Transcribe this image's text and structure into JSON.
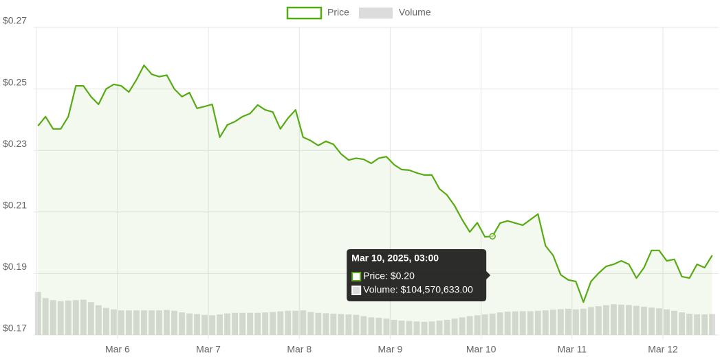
{
  "chart_data": {
    "type": "line",
    "x": [
      3,
      5,
      7,
      9,
      11,
      13,
      15,
      17,
      19,
      21,
      23,
      25,
      27,
      29,
      31,
      33,
      35,
      37,
      39,
      41,
      43,
      45,
      47,
      49,
      51,
      53,
      55,
      57,
      59,
      61,
      63,
      65,
      67,
      69,
      71,
      73,
      75,
      77,
      79,
      81,
      83,
      85,
      87,
      89,
      91,
      93,
      95,
      97,
      99,
      101,
      103,
      105,
      107,
      109,
      111,
      113,
      115,
      117,
      119,
      121,
      123,
      125,
      127,
      129,
      131,
      133,
      135,
      137,
      139,
      141,
      143,
      145,
      147,
      149,
      151,
      153,
      155,
      157,
      159,
      161,
      163,
      165,
      167,
      169,
      171,
      173,
      175,
      177,
      179,
      181
    ],
    "series": [
      {
        "name": "Price",
        "color": "#56ab12",
        "values": [
          0.238,
          0.241,
          0.237,
          0.237,
          0.241,
          0.251,
          0.251,
          0.2475,
          0.245,
          0.25,
          0.2515,
          0.251,
          0.249,
          0.253,
          0.2577,
          0.2548,
          0.254,
          0.2545,
          0.25,
          0.2475,
          0.2488,
          0.2437,
          0.2443,
          0.245,
          0.2343,
          0.2383,
          0.2394,
          0.241,
          0.242,
          0.2448,
          0.2432,
          0.2425,
          0.237,
          0.2405,
          0.2432,
          0.2343,
          0.2332,
          0.2316,
          0.233,
          0.232,
          0.2289,
          0.2269,
          0.2275,
          0.2271,
          0.2258,
          0.2275,
          0.228,
          0.2254,
          0.2238,
          0.2236,
          0.2227,
          0.222,
          0.222,
          0.2175,
          0.2155,
          0.212,
          0.2075,
          0.2035,
          0.2065,
          0.2019,
          0.2021,
          0.2064,
          0.2071,
          0.2064,
          0.2057,
          0.2075,
          0.2093,
          0.199,
          0.1959,
          0.1896,
          0.1879,
          0.1874,
          0.1807,
          0.1874,
          0.1901,
          0.1923,
          0.193,
          0.1941,
          0.193,
          0.1885,
          0.1919,
          0.1975,
          0.1975,
          0.1941,
          0.1946,
          0.189,
          0.1885,
          0.193,
          0.1919,
          0.1959
        ]
      },
      {
        "name": "Volume",
        "color": "#dcdcdc",
        "axis": "y2",
        "values": [
          210000000,
          180000000,
          170000000,
          165000000,
          168000000,
          170000000,
          172000000,
          160000000,
          145000000,
          132000000,
          125000000,
          120000000,
          120000000,
          120000000,
          120000000,
          120000000,
          120000000,
          122000000,
          118000000,
          110000000,
          105000000,
          102000000,
          98000000,
          96000000,
          100000000,
          105000000,
          108000000,
          108000000,
          108000000,
          108000000,
          110000000,
          112000000,
          115000000,
          118000000,
          118000000,
          120000000,
          112000000,
          108000000,
          106000000,
          104000000,
          102000000,
          100000000,
          98000000,
          92000000,
          86000000,
          84000000,
          80000000,
          74000000,
          70000000,
          68000000,
          66000000,
          64000000,
          66000000,
          70000000,
          74000000,
          80000000,
          86000000,
          92000000,
          96000000,
          100000000,
          104570633,
          110000000,
          114000000,
          115000000,
          116000000,
          116000000,
          118000000,
          120000000,
          124000000,
          126000000,
          128000000,
          125000000,
          128000000,
          136000000,
          140000000,
          145000000,
          150000000,
          148000000,
          146000000,
          142000000,
          138000000,
          134000000,
          130000000,
          125000000,
          118000000,
          110000000,
          104000000,
          100000000,
          100000000,
          102000000
        ]
      }
    ],
    "xlim": [
      2.6,
      182.7
    ],
    "xticks": [
      {
        "value": 24,
        "label": "Mar 6"
      },
      {
        "value": 48,
        "label": "Mar 7"
      },
      {
        "value": 72,
        "label": "Mar 8"
      },
      {
        "value": 96,
        "label": "Mar 9"
      },
      {
        "value": 120,
        "label": "Mar 10"
      },
      {
        "value": 144,
        "label": "Mar 11"
      },
      {
        "value": 168,
        "label": "Mar 12"
      }
    ],
    "ylim": [
      0.17,
      0.27
    ],
    "yticks": [
      {
        "value": 0.17,
        "label": "$0.17"
      },
      {
        "value": 0.19,
        "label": "$0.19"
      },
      {
        "value": 0.21,
        "label": "$0.21"
      },
      {
        "value": 0.23,
        "label": "$0.23"
      },
      {
        "value": 0.25,
        "label": "$0.25"
      },
      {
        "value": 0.27,
        "label": "$0.27"
      }
    ],
    "y2lim": [
      0,
      1500000000
    ],
    "grid": true,
    "legend": "top",
    "tooltip": {
      "title": "Mar 10, 2025, 03:00",
      "items": [
        "Price: $0.20",
        "Volume: $104,570,633.00"
      ]
    }
  }
}
